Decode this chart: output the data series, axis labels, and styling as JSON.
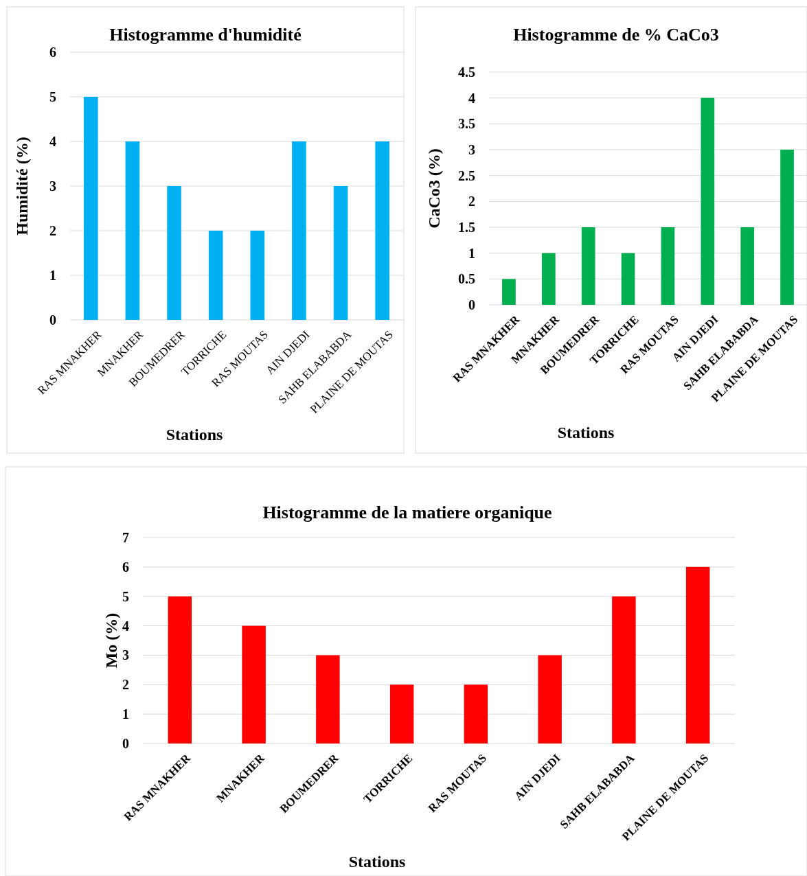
{
  "chart_data": [
    {
      "type": "bar",
      "title": "Histogramme d'humidité",
      "xlabel": "Stations",
      "ylabel": "Humidité (%)",
      "categories": [
        "RAS MNAKHER",
        "MNAKHER",
        "BOUMEDRER",
        "TORRICHE",
        "RAS MOUTAS",
        "AIN DJEDI",
        "SAHB ELABABDA",
        "PLAINE DE MOUTAS"
      ],
      "values": [
        5,
        4,
        3,
        2,
        2,
        4,
        3,
        4
      ],
      "color": "#00b0f0",
      "ylim": [
        0,
        6
      ],
      "yticks": [
        0,
        1,
        2,
        3,
        4,
        5,
        6
      ],
      "grid": "y"
    },
    {
      "type": "bar",
      "title": "Histogramme de % CaCo3",
      "xlabel": "Stations",
      "ylabel": "CaCo3 (%)",
      "categories": [
        "RAS MNAKHER",
        "MNAKHER",
        "BOUMEDRER",
        "TORRICHE",
        "RAS MOUTAS",
        "AIN DJEDI",
        "SAHB ELABABDA",
        "PLAINE DE MOUTAS"
      ],
      "values": [
        0.5,
        1,
        1.5,
        1,
        1.5,
        4,
        1.5,
        3
      ],
      "color": "#00b050",
      "ylim": [
        0,
        4.5
      ],
      "yticks": [
        0,
        0.5,
        1,
        1.5,
        2,
        2.5,
        3,
        3.5,
        4,
        4.5
      ],
      "grid": "y"
    },
    {
      "type": "bar",
      "title": "Histogramme de la matiere organique",
      "xlabel": "Stations",
      "ylabel": "Mo (%)",
      "categories": [
        "RAS MNAKHER",
        "MNAKHER",
        "BOUMEDRER",
        "TORRICHE",
        "RAS MOUTAS",
        "AIN DJEDI",
        "SAHB ELABABDA",
        "PLAINE DE MOUTAS"
      ],
      "values": [
        5,
        4,
        3,
        2,
        2,
        3,
        5,
        6
      ],
      "color": "#ff0000",
      "ylim": [
        0,
        7
      ],
      "yticks": [
        0,
        1,
        2,
        3,
        4,
        5,
        6,
        7
      ],
      "grid": "y"
    }
  ]
}
